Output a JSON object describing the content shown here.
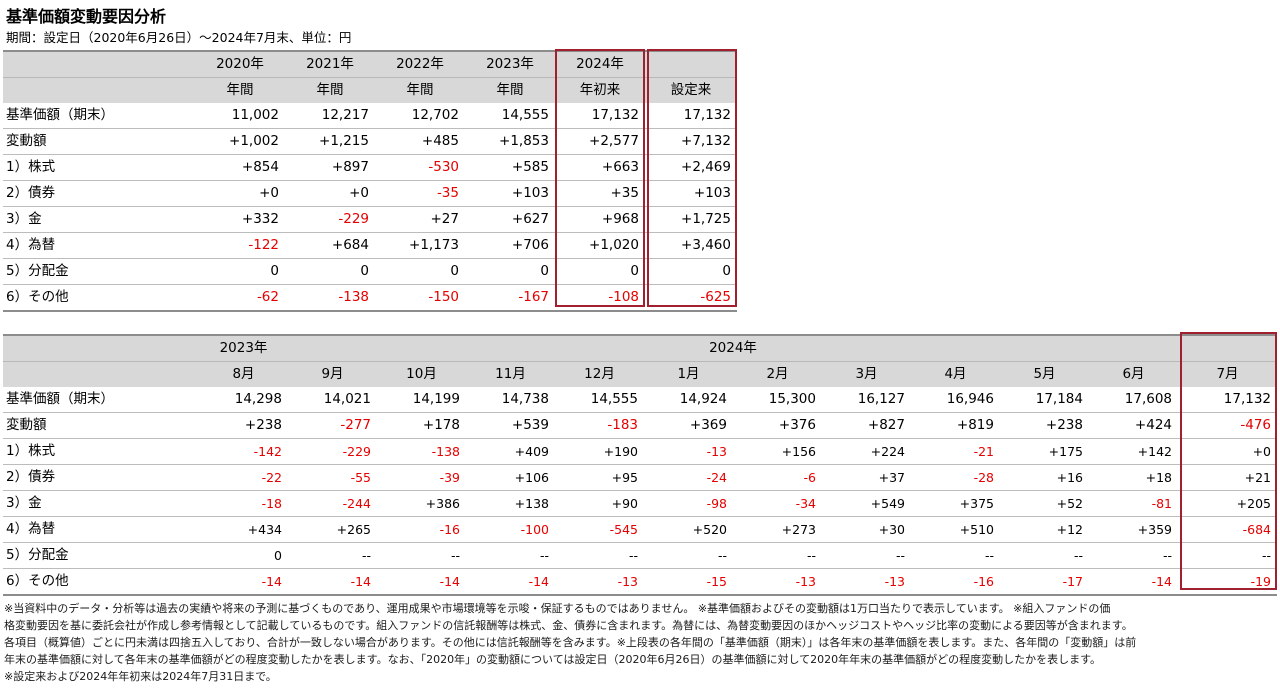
{
  "title": "基準価額変動要因分析",
  "subtitle": "期間：設定日（2020年6月26日）～2024年7月末、単位：円",
  "table1": {
    "header1": [
      "2020年",
      "2021年",
      "2022年",
      "2023年",
      "2024年",
      ""
    ],
    "header2": [
      "年間",
      "年間",
      "年間",
      "年間",
      "年初来",
      "設定来"
    ],
    "rows": [
      {
        "label": "基準価額（期末）",
        "values": [
          "11,002",
          "12,217",
          "12,702",
          "14,555",
          "17,132",
          "17,132"
        ]
      },
      {
        "label": "変動額",
        "values": [
          "+1,002",
          "+1,215",
          "+485",
          "+1,853",
          "+2,577",
          "+7,132"
        ]
      },
      {
        "label": "1）株式",
        "values": [
          "+854",
          "+897",
          "-530",
          "+585",
          "+663",
          "+2,469"
        ]
      },
      {
        "label": "2）債券",
        "values": [
          "+0",
          "+0",
          "-35",
          "+103",
          "+35",
          "+103"
        ]
      },
      {
        "label": "3）金",
        "values": [
          "+332",
          "-229",
          "+27",
          "+627",
          "+968",
          "+1,725"
        ]
      },
      {
        "label": "4）為替",
        "values": [
          "-122",
          "+684",
          "+1,173",
          "+706",
          "+1,020",
          "+3,460"
        ]
      },
      {
        "label": "5）分配金",
        "values": [
          "0",
          "0",
          "0",
          "0",
          "0",
          "0"
        ]
      },
      {
        "label": "6）その他",
        "values": [
          "-62",
          "-138",
          "-150",
          "-167",
          "-108",
          "-625"
        ]
      }
    ]
  },
  "table2": {
    "year_2023": "2023年",
    "year_2024": "2024年",
    "months": [
      "8月",
      "9月",
      "10月",
      "11月",
      "12月",
      "1月",
      "2月",
      "3月",
      "4月",
      "5月",
      "6月",
      "7月"
    ],
    "rows": [
      {
        "label": "基準価額（期末）",
        "values": [
          "14,298",
          "14,021",
          "14,199",
          "14,738",
          "14,555",
          "14,924",
          "15,300",
          "16,127",
          "16,946",
          "17,184",
          "17,608",
          "17,132"
        ]
      },
      {
        "label": "変動額",
        "values": [
          "+238",
          "-277",
          "+178",
          "+539",
          "-183",
          "+369",
          "+376",
          "+827",
          "+819",
          "+238",
          "+424",
          "-476"
        ]
      },
      {
        "label": "1）株式",
        "values": [
          "-142",
          "-229",
          "-138",
          "+409",
          "+190",
          "-13",
          "+156",
          "+224",
          "-21",
          "+175",
          "+142",
          "+0"
        ]
      },
      {
        "label": "2）債券",
        "values": [
          "-22",
          "-55",
          "-39",
          "+106",
          "+95",
          "-24",
          "-6",
          "+37",
          "-28",
          "+16",
          "+18",
          "+21"
        ]
      },
      {
        "label": "3）金",
        "values": [
          "-18",
          "-244",
          "+386",
          "+138",
          "+90",
          "-98",
          "-34",
          "+549",
          "+375",
          "+52",
          "-81",
          "+205"
        ]
      },
      {
        "label": "4）為替",
        "values": [
          "+434",
          "+265",
          "-16",
          "-100",
          "-545",
          "+520",
          "+273",
          "+30",
          "+510",
          "+12",
          "+359",
          "-684"
        ]
      },
      {
        "label": "5）分配金",
        "values": [
          "0",
          "--",
          "--",
          "--",
          "--",
          "--",
          "--",
          "--",
          "--",
          "--",
          "--",
          "--"
        ]
      },
      {
        "label": "6）その他",
        "values": [
          "-14",
          "-14",
          "-14",
          "-14",
          "-13",
          "-15",
          "-13",
          "-13",
          "-16",
          "-17",
          "-14",
          "-19"
        ]
      }
    ]
  },
  "notes": [
    "※当資料中のデータ・分析等は過去の実績や将来の予測に基づくものであり、運用成果や市場環境等を示唆・保証するものではありません。 ※基準価額およびその変動額は1万口当たりで表示しています。 ※組入ファンドの価",
    "格変動要因を基に委託会社が作成し参考情報として記載しているものです。組入ファンドの信託報酬等は株式、金、債券に含まれます。為替には、為替変動要因のほかヘッジコストやヘッジ比率の変動による要因等が含まれます。",
    "各項目（概算値）ごとに円未満は四捨五入しており、合計が一致しない場合があります。その他には信託報酬等を含みます。※上段表の各年間の「基準価額（期末）」は各年末の基準価額を表します。また、各年間の「変動額」は前",
    "年末の基準価額に対して各年末の基準価額がどの程度変動したかを表します。なお、「2020年」の変動額については設定日（2020年6月26日）の基準価額に対して2020年年末の基準価額がどの程度変動したかを表します。",
    "※設定来および2024年年初来は2024年7月31日まで。"
  ],
  "colors": {
    "negative": "#e60000",
    "highlight_border": "#a02030",
    "header_bg": "#d8d8d8"
  }
}
